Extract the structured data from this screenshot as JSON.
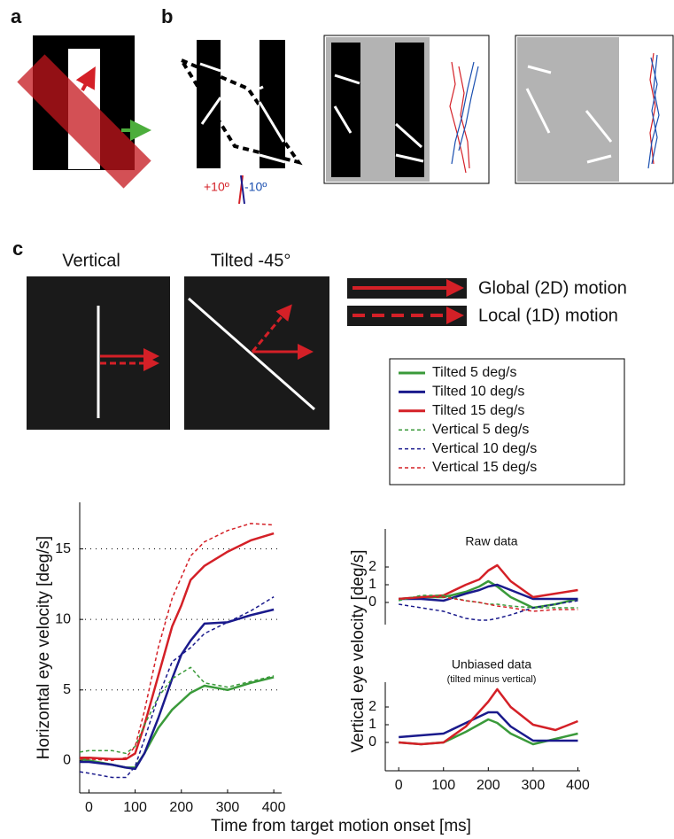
{
  "figure": {
    "panel_labels": [
      "a",
      "b",
      "c"
    ],
    "b_angles": [
      "+10º",
      "-10º"
    ],
    "c_titles": [
      "Vertical",
      "Tilted -45°"
    ],
    "motion_legend": [
      "Global (2D) motion",
      "Local (1D) motion"
    ]
  },
  "chart_data": [
    {
      "type": "line",
      "xlabel": "Time from target motion onset [ms]",
      "ylabel": "Horizontal eye velocity [deg/s]",
      "x": [
        -20,
        0,
        50,
        80,
        100,
        120,
        150,
        180,
        200,
        220,
        250,
        300,
        350,
        400
      ],
      "xlim": [
        -20,
        417
      ],
      "ylim": [
        -2.3,
        18.3
      ],
      "xticks": [
        0,
        100,
        200,
        300,
        400
      ],
      "yticks": [
        0,
        5,
        10,
        15
      ],
      "hlines": [
        5,
        10,
        15
      ],
      "series": [
        {
          "name": "Tilted 5 deg/s",
          "color": "#3a9a3a",
          "style": "solid",
          "values": [
            0.1,
            0,
            -0.3,
            -0.5,
            -0.5,
            0.5,
            2.3,
            3.6,
            4.2,
            4.8,
            5.3,
            5.0,
            5.5,
            5.9
          ]
        },
        {
          "name": "Tilted 10 deg/s",
          "color": "#1a1a8c",
          "style": "solid",
          "values": [
            -0.1,
            -0.1,
            -0.3,
            -0.5,
            -0.6,
            0.5,
            3.0,
            5.8,
            7.5,
            8.5,
            9.7,
            9.8,
            10.3,
            10.7
          ]
        },
        {
          "name": "Tilted 15 deg/s",
          "color": "#d42027",
          "style": "solid",
          "values": [
            0.2,
            0.2,
            0.1,
            0.1,
            0.5,
            2.5,
            6.0,
            9.5,
            11.0,
            12.8,
            13.8,
            14.8,
            15.6,
            16.1
          ]
        },
        {
          "name": "Vertical 5 deg/s",
          "color": "#3a9a3a",
          "style": "dashed",
          "values": [
            0.6,
            0.7,
            0.7,
            0.5,
            1.0,
            2.5,
            4.5,
            5.8,
            6.2,
            6.6,
            5.5,
            5.2,
            5.6,
            6.0
          ]
        },
        {
          "name": "Vertical 10 deg/s",
          "color": "#1a1a8c",
          "style": "dashed",
          "values": [
            -0.8,
            -0.9,
            -1.2,
            -1.2,
            -0.4,
            1.5,
            4.5,
            7.0,
            7.5,
            8.0,
            9.0,
            9.8,
            10.6,
            11.6
          ]
        },
        {
          "name": "Vertical 15 deg/s",
          "color": "#d42027",
          "style": "dashed",
          "values": [
            0.1,
            0.1,
            0.0,
            0.2,
            1.0,
            3.5,
            8.0,
            11.5,
            13.0,
            14.5,
            15.5,
            16.3,
            16.8,
            16.7
          ]
        }
      ]
    },
    {
      "type": "line",
      "title": "Raw data",
      "ylabel": "Vertical eye velocity [deg/s]",
      "x": [
        0,
        50,
        100,
        150,
        180,
        200,
        220,
        250,
        300,
        350,
        400
      ],
      "xlim": [
        -30,
        405
      ],
      "ylim": [
        -1.25,
        4.15
      ],
      "yticks": [
        0,
        1,
        2
      ],
      "series": [
        {
          "color": "#3a9a3a",
          "style": "solid",
          "values": [
            0.2,
            0.3,
            0.3,
            0.6,
            0.9,
            1.2,
            0.9,
            0.3,
            -0.3,
            -0.1,
            0.2
          ]
        },
        {
          "color": "#1a1a8c",
          "style": "solid",
          "values": [
            0.2,
            0.2,
            0.1,
            0.5,
            0.7,
            0.9,
            1.0,
            0.7,
            0.2,
            0.2,
            0.2
          ]
        },
        {
          "color": "#d42027",
          "style": "solid",
          "values": [
            0.2,
            0.3,
            0.4,
            1.0,
            1.3,
            1.8,
            2.1,
            1.2,
            0.3,
            0.5,
            0.7
          ]
        },
        {
          "color": "#3a9a3a",
          "style": "dashed",
          "values": [
            0.1,
            0.4,
            0.4,
            0.1,
            0.0,
            -0.1,
            -0.1,
            -0.2,
            -0.3,
            -0.3,
            -0.3
          ]
        },
        {
          "color": "#1a1a8c",
          "style": "dashed",
          "values": [
            -0.1,
            -0.3,
            -0.5,
            -0.9,
            -1.0,
            -1.0,
            -0.9,
            -0.7,
            -0.3,
            -0.1,
            0.1
          ]
        },
        {
          "color": "#d42027",
          "style": "dashed",
          "values": [
            0.2,
            0.3,
            0.3,
            0.1,
            0.0,
            -0.1,
            -0.2,
            -0.3,
            -0.5,
            -0.4,
            -0.4
          ]
        }
      ]
    },
    {
      "type": "line",
      "title": "Unbiased data",
      "subtitle": "(tilted minus vertical)",
      "x": [
        0,
        50,
        100,
        150,
        200,
        220,
        250,
        300,
        350,
        400
      ],
      "xlim": [
        -30,
        405
      ],
      "ylim": [
        -1.6,
        3.4
      ],
      "xticks": [
        0,
        100,
        200,
        300,
        400
      ],
      "yticks": [
        0,
        1,
        2
      ],
      "series": [
        {
          "color": "#3a9a3a",
          "style": "solid",
          "values": [
            0.0,
            -0.1,
            0.0,
            0.6,
            1.3,
            1.1,
            0.5,
            -0.1,
            0.2,
            0.5
          ]
        },
        {
          "color": "#1a1a8c",
          "style": "solid",
          "values": [
            0.3,
            0.4,
            0.5,
            1.1,
            1.7,
            1.7,
            0.9,
            0.1,
            0.1,
            0.1
          ]
        },
        {
          "color": "#d42027",
          "style": "solid",
          "values": [
            0.0,
            -0.1,
            0.0,
            0.9,
            2.3,
            3.0,
            2.0,
            1.0,
            0.7,
            1.2
          ]
        }
      ]
    }
  ]
}
